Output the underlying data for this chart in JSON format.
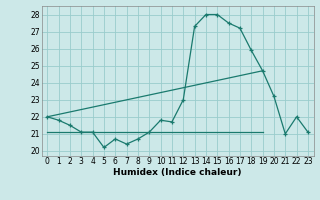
{
  "xlabel": "Humidex (Indice chaleur)",
  "bg_color": "#cce8e8",
  "grid_color": "#99cccc",
  "line_color": "#1a7a6e",
  "ylim": [
    19.7,
    28.5
  ],
  "xlim": [
    -0.5,
    23.5
  ],
  "yticks": [
    20,
    21,
    22,
    23,
    24,
    25,
    26,
    27,
    28
  ],
  "xticks": [
    0,
    1,
    2,
    3,
    4,
    5,
    6,
    7,
    8,
    9,
    10,
    11,
    12,
    13,
    14,
    15,
    16,
    17,
    18,
    19,
    20,
    21,
    22,
    23
  ],
  "curve1_x": [
    0,
    1,
    2,
    3,
    4,
    5,
    6,
    7,
    8,
    9,
    10,
    11,
    12,
    13,
    14,
    15,
    16,
    17,
    18,
    19,
    20,
    21,
    22,
    23
  ],
  "curve1_y": [
    22.0,
    21.8,
    21.5,
    21.1,
    21.1,
    20.2,
    20.7,
    20.4,
    20.7,
    21.1,
    21.8,
    21.7,
    23.0,
    27.3,
    28.0,
    28.0,
    27.5,
    27.2,
    25.9,
    24.7,
    23.2,
    21.0,
    22.0,
    21.1
  ],
  "curve2_x": [
    0,
    19
  ],
  "curve2_y": [
    22.0,
    24.7
  ],
  "curve3_x": [
    0,
    19
  ],
  "curve3_y": [
    21.1,
    21.1
  ],
  "label_fontsize": 5.5,
  "xlabel_fontsize": 6.5
}
